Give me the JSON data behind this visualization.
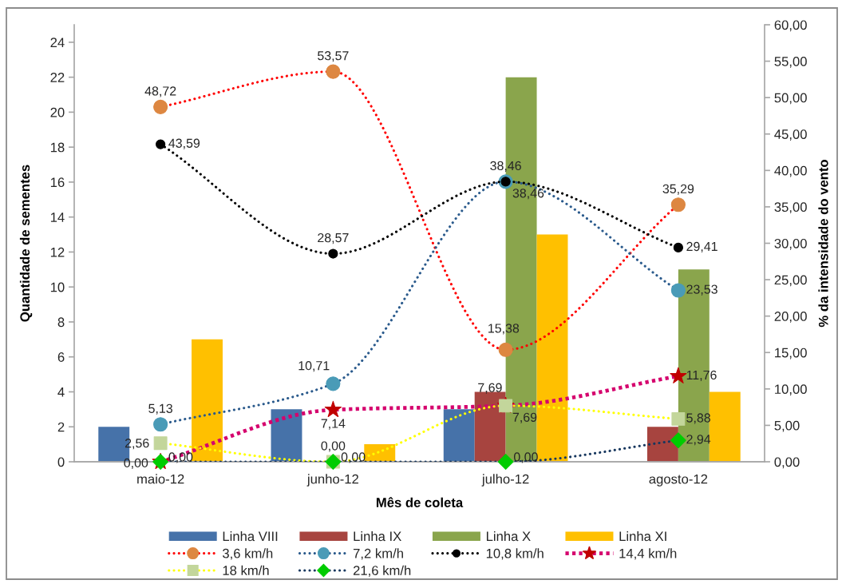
{
  "chart_data": {
    "type": "bar",
    "xlabel": "Mês de coleta",
    "ylabel": "Quantidade de sementes",
    "y2label": "% da intensidade do vento",
    "categories": [
      "maio-12",
      "junho-12",
      "julho-12",
      "agosto-12"
    ],
    "ylim": [
      0,
      25
    ],
    "yticks": [
      0,
      2,
      4,
      6,
      8,
      10,
      12,
      14,
      16,
      18,
      20,
      22,
      24
    ],
    "y2lim": [
      0,
      60
    ],
    "y2ticks": [
      {
        "value": 0,
        "label": "0,00"
      },
      {
        "value": 5,
        "label": "5,00"
      },
      {
        "value": 10,
        "label": "10,00"
      },
      {
        "value": 15,
        "label": "15,00"
      },
      {
        "value": 20,
        "label": "20,00"
      },
      {
        "value": 25,
        "label": "25,00"
      },
      {
        "value": 30,
        "label": "30,00"
      },
      {
        "value": 35,
        "label": "35,00"
      },
      {
        "value": 40,
        "label": "40,00"
      },
      {
        "value": 45,
        "label": "45,00"
      },
      {
        "value": 50,
        "label": "50,00"
      },
      {
        "value": 55,
        "label": "55,00"
      },
      {
        "value": 60,
        "label": "60,00"
      }
    ],
    "legend": "bottom",
    "series": [
      {
        "name": "Linha VIII",
        "color": "#4672a9",
        "values": [
          2,
          3,
          3,
          0
        ]
      },
      {
        "name": "Linha IX",
        "color": "#a7443f",
        "values": [
          0,
          0,
          4,
          2
        ]
      },
      {
        "name": "Linha X",
        "color": "#8aa54c",
        "values": [
          0,
          0,
          22,
          11
        ]
      },
      {
        "name": "Linha XI",
        "color": "#ffc000",
        "values": [
          7,
          1,
          13,
          4
        ]
      },
      {
        "name": "3,6 km/h",
        "type": "line",
        "axis": "y2",
        "color": "#ff0000",
        "colors": [
          "#dd8741",
          "#dd8741",
          "#dd8741",
          "#dd8741"
        ],
        "marker": "circle",
        "line_style": "dotted",
        "values": [
          48.72,
          53.57,
          15.38,
          35.29
        ],
        "value_labels": [
          "48,72",
          "53,57",
          "15,38",
          "35,29"
        ]
      },
      {
        "name": "7,2 km/h",
        "type": "line",
        "axis": "y2",
        "color": "#2a5a8c",
        "colors": [
          "#4a9bb7",
          "#4a9bb7",
          "#4a9bb7",
          "#4a9bb7"
        ],
        "marker": "circle",
        "line_style": "dotted",
        "values": [
          5.13,
          10.71,
          38.46,
          23.53
        ],
        "value_labels": [
          "5,13",
          "10,71",
          "38,46",
          "23,53"
        ]
      },
      {
        "name": "10,8 km/h",
        "type": "line",
        "axis": "y2",
        "color": "#000000",
        "colors": [
          "#000000",
          "#000000",
          "#000000",
          "#000000"
        ],
        "marker": "circle",
        "line_style": "dotted",
        "values": [
          43.59,
          28.57,
          38.46,
          29.41
        ],
        "value_labels": [
          "43,59",
          "28,57",
          "38,46",
          "29,41"
        ]
      },
      {
        "name": "14,4 km/h",
        "type": "line",
        "axis": "y2",
        "color": "#d5006d",
        "colors": [
          "#c00000",
          "#c00000",
          "#c00000",
          "#c00000"
        ],
        "marker": "star",
        "line_style": "dotted",
        "values": [
          0,
          7.14,
          7.69,
          11.76
        ],
        "value_labels": [
          "0,00",
          "7,14",
          "7,69",
          "11,76"
        ]
      },
      {
        "name": "18 km/h",
        "type": "line",
        "axis": "y2",
        "color": "#ffff00",
        "colors": [
          "#c3d69b",
          "#c3d69b",
          "#c3d69b",
          "#c3d69b"
        ],
        "marker": "square",
        "line_style": "dotted",
        "values": [
          2.56,
          0,
          7.69,
          5.88
        ],
        "value_labels": [
          "2,56",
          "0,00",
          "7,69",
          "5,88"
        ]
      },
      {
        "name": "21,6 km/h",
        "type": "line",
        "axis": "y2",
        "color": "#17375e",
        "colors": [
          "#00cc00",
          "#00cc00",
          "#00cc00",
          "#00cc00"
        ],
        "marker": "diamond",
        "line_style": "dotted",
        "values": [
          0,
          0,
          0,
          2.94
        ],
        "value_labels": [
          "0,00",
          "0,00",
          "0,00",
          "2,94"
        ]
      }
    ]
  }
}
